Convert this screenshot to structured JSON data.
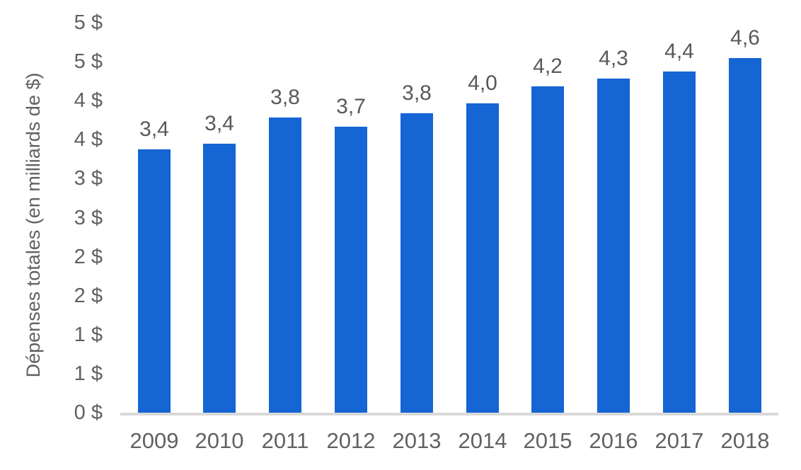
{
  "chart_data": {
    "type": "bar",
    "title": "",
    "ylabel": "Dépenses totales (en milliards de $)",
    "xlabel": "",
    "categories": [
      "2009",
      "2010",
      "2011",
      "2012",
      "2013",
      "2014",
      "2015",
      "2016",
      "2017",
      "2018"
    ],
    "values": [
      3.4,
      3.4,
      3.8,
      3.7,
      3.8,
      4.0,
      4.2,
      4.3,
      4.4,
      4.6
    ],
    "bar_labels": [
      "3,4",
      "3,4",
      "3,8",
      "3,7",
      "3,8",
      "4,0",
      "4,2",
      "4,3",
      "4,4",
      "4,6"
    ],
    "values_precise": [
      3.38,
      3.45,
      3.78,
      3.67,
      3.84,
      3.97,
      4.18,
      4.28,
      4.37,
      4.55
    ],
    "ylim": [
      0,
      5
    ],
    "ytick_step": 0.5,
    "ytick_labels": [
      "5 $",
      "5 $",
      "4 $",
      "4 $",
      "3 $",
      "3 $",
      "2 $",
      "2 $",
      "1 $",
      "1 $",
      "0 $"
    ],
    "grid": false,
    "legend": false,
    "colors": {
      "bar": "#1565d4",
      "text": "#616161",
      "bar_label_text": "#595959",
      "axis_line": "#d9d9d9",
      "background": "#ffffff"
    }
  }
}
